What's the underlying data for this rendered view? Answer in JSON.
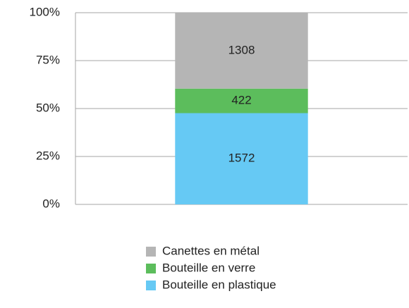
{
  "chart_data": {
    "type": "bar",
    "stacking": "percent",
    "categories": [
      null
    ],
    "series": [
      {
        "name": "Bouteille en plastique",
        "color": "#66c9f4",
        "values": [
          1572
        ]
      },
      {
        "name": "Bouteille en verre",
        "color": "#5cbd5c",
        "values": [
          422
        ]
      },
      {
        "name": "Canettes en métal",
        "color": "#b5b5b5",
        "values": [
          1308
        ]
      }
    ],
    "ylim": [
      0,
      100
    ],
    "yticks": [
      {
        "value": 0,
        "label": "0%"
      },
      {
        "value": 25,
        "label": "25%"
      },
      {
        "value": 50,
        "label": "50%"
      },
      {
        "value": 75,
        "label": "75%"
      },
      {
        "value": 100,
        "label": "100%"
      }
    ],
    "grid": true,
    "legend": "bottom"
  }
}
